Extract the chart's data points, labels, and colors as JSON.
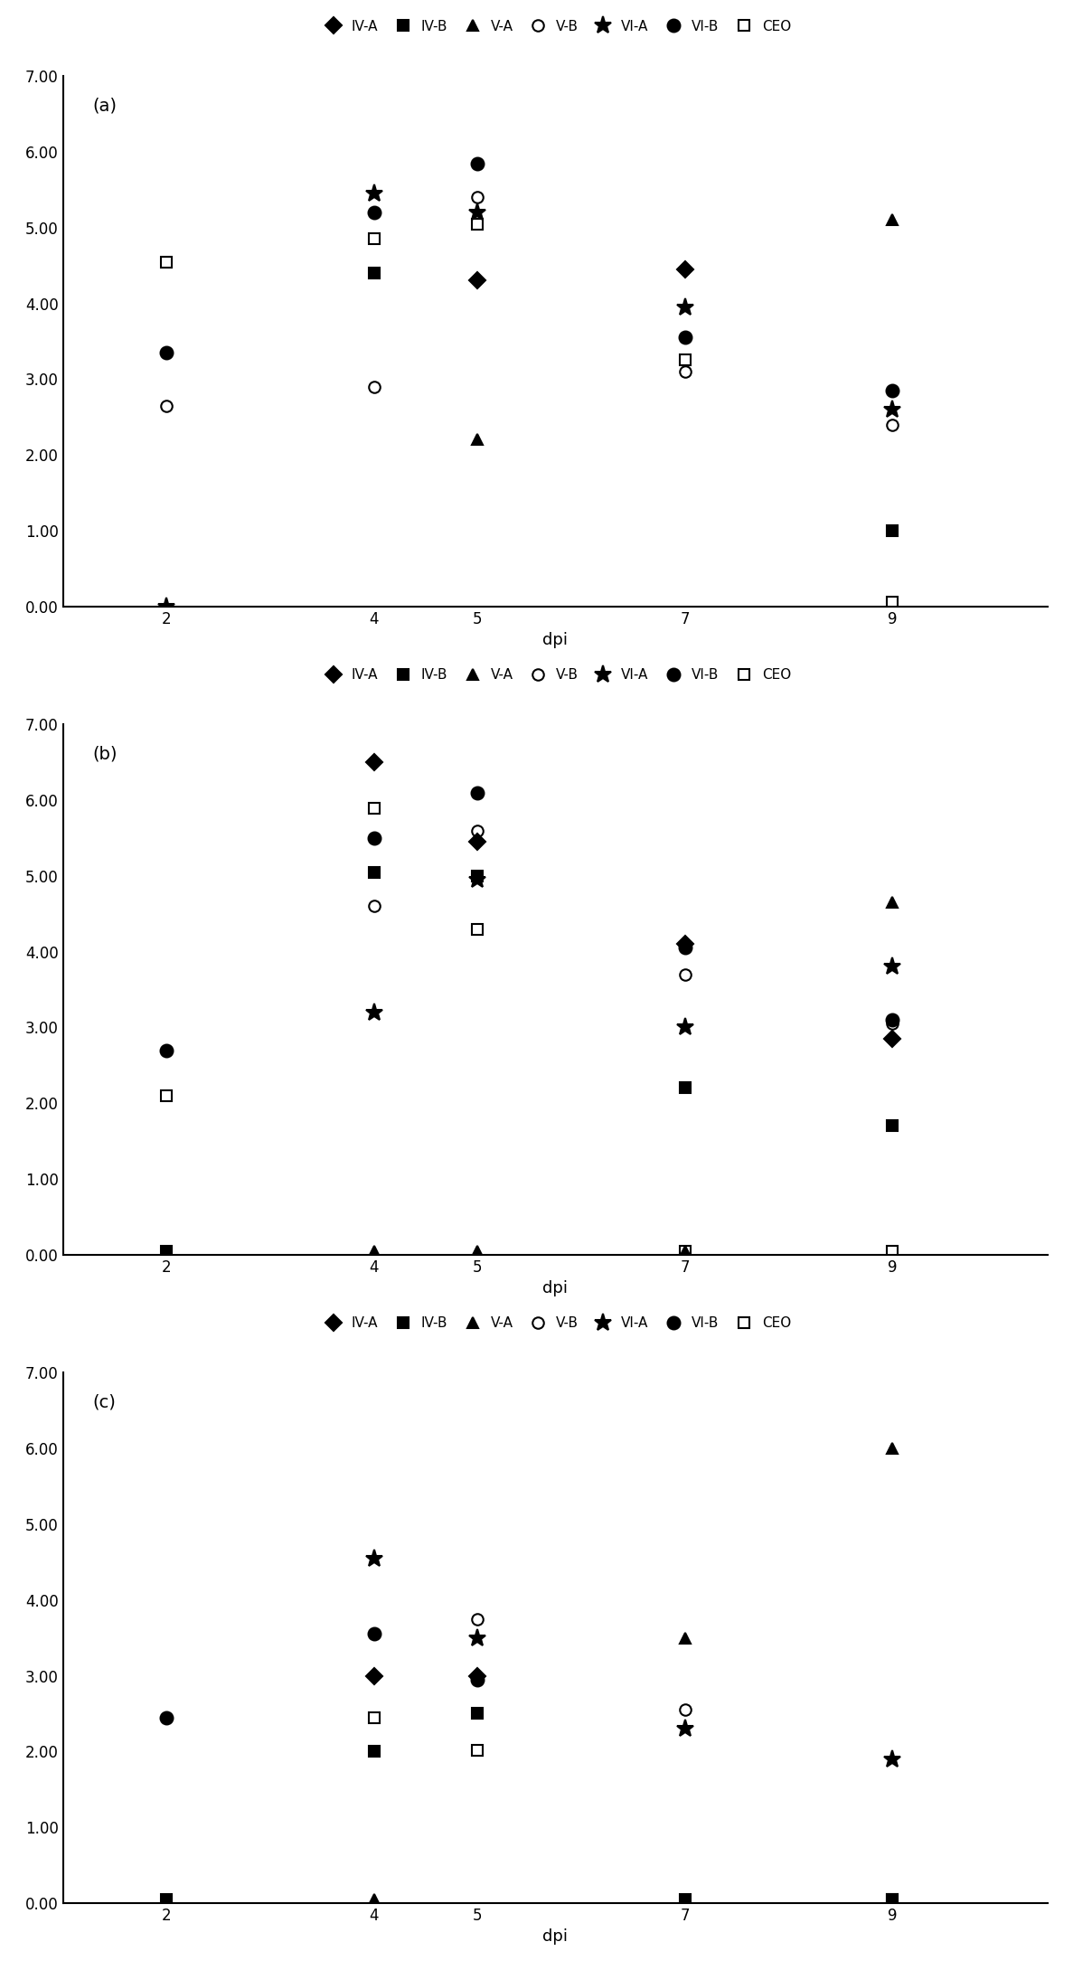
{
  "x_vals": [
    2,
    4,
    5,
    7,
    9
  ],
  "panels": [
    {
      "label": "(a)",
      "series": {
        "IV-A": [
          null,
          null,
          4.3,
          4.45,
          null
        ],
        "IV-B": [
          null,
          4.4,
          null,
          null,
          1.0
        ],
        "V-A": [
          null,
          null,
          2.2,
          null,
          5.1
        ],
        "V-B": [
          2.65,
          2.9,
          5.4,
          3.1,
          2.4
        ],
        "VI-A": [
          0.0,
          5.45,
          5.2,
          3.95,
          2.6
        ],
        "VI-B": [
          3.35,
          5.2,
          5.85,
          3.55,
          2.85
        ],
        "CEO": [
          4.55,
          4.85,
          5.05,
          3.25,
          0.05
        ]
      }
    },
    {
      "label": "(b)",
      "series": {
        "IV-A": [
          null,
          6.5,
          5.45,
          4.1,
          2.85
        ],
        "IV-B": [
          0.05,
          5.05,
          5.0,
          2.2,
          1.7
        ],
        "V-A": [
          null,
          0.05,
          0.05,
          0.05,
          4.65
        ],
        "V-B": [
          null,
          4.6,
          5.6,
          3.7,
          3.05
        ],
        "VI-A": [
          null,
          3.2,
          4.95,
          3.0,
          3.8
        ],
        "VI-B": [
          2.7,
          5.5,
          6.1,
          4.05,
          3.1
        ],
        "CEO": [
          2.1,
          5.9,
          4.3,
          0.05,
          0.05
        ]
      }
    },
    {
      "label": "(c)",
      "series": {
        "IV-A": [
          null,
          3.0,
          3.0,
          null,
          null
        ],
        "IV-B": [
          0.05,
          2.0,
          2.5,
          0.05,
          0.05
        ],
        "V-A": [
          null,
          0.05,
          null,
          3.5,
          6.0
        ],
        "V-B": [
          null,
          null,
          3.75,
          2.55,
          null
        ],
        "VI-A": [
          null,
          4.55,
          3.5,
          2.3,
          1.9
        ],
        "VI-B": [
          2.45,
          3.55,
          2.95,
          null,
          null
        ],
        "CEO": [
          null,
          2.45,
          2.02,
          null,
          0.05
        ]
      }
    }
  ],
  "series_styles": {
    "IV-A": {
      "marker": "D",
      "color": "black",
      "fillstyle": "full",
      "ms": 9
    },
    "IV-B": {
      "marker": "s",
      "color": "black",
      "fillstyle": "full",
      "ms": 9
    },
    "V-A": {
      "marker": "^",
      "color": "black",
      "fillstyle": "full",
      "ms": 9
    },
    "V-B": {
      "marker": "o",
      "color": "black",
      "fillstyle": "none",
      "ms": 9
    },
    "VI-A": {
      "marker": "x",
      "color": "black",
      "fillstyle": "full",
      "ms": 10
    },
    "VI-B": {
      "marker": "o",
      "color": "black",
      "fillstyle": "full",
      "ms": 10
    },
    "CEO": {
      "marker": "s",
      "color": "black",
      "fillstyle": "none",
      "ms": 9
    }
  },
  "ylim": [
    0,
    7.0
  ],
  "yticks": [
    0.0,
    1.0,
    2.0,
    3.0,
    4.0,
    5.0,
    6.0,
    7.0
  ],
  "xticks": [
    2,
    4,
    5,
    7,
    9
  ],
  "xlabel": "dpi",
  "figsize": [
    11.87,
    21.79
  ],
  "dpi": 100
}
